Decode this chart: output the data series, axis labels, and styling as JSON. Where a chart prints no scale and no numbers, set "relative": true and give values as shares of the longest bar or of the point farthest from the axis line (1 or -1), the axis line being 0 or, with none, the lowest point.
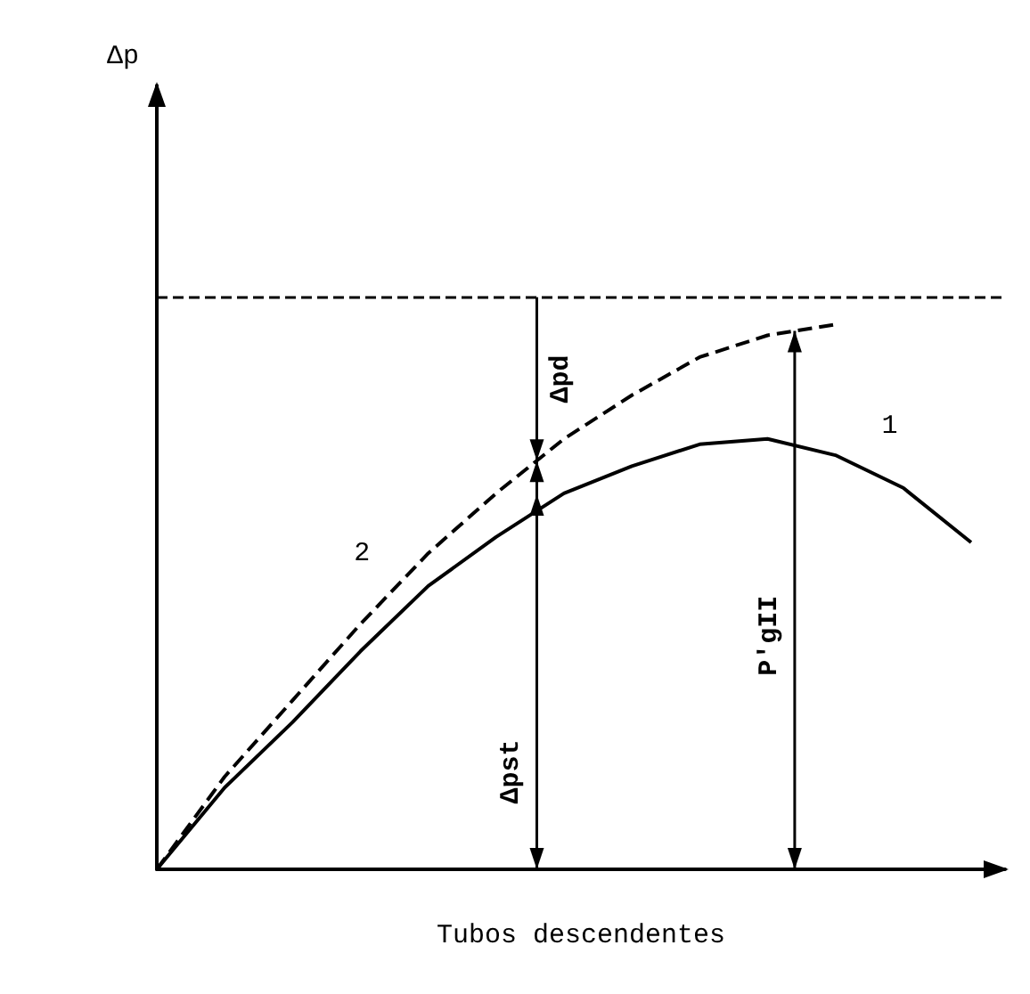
{
  "chart_data": {
    "type": "line",
    "relative": true,
    "xlabel": "Tubos descendentes",
    "categories": [
      null,
      null,
      null,
      null,
      null,
      null,
      null,
      null,
      null,
      null,
      null,
      null,
      null
    ],
    "series": [
      {
        "name": "1",
        "color": "#000000",
        "line_style": "solid",
        "values": [
          0,
          0.15,
          0.27,
          0.4,
          0.52,
          0.61,
          0.69,
          0.74,
          0.78,
          0.79,
          0.76,
          0.7,
          0.6
        ]
      },
      {
        "name": "2",
        "color": "#000000",
        "line_style": "dashed",
        "values": [
          0,
          0.17,
          0.31,
          0.45,
          0.58,
          0.69,
          0.79,
          0.87,
          0.94,
          0.98,
          1,
          null,
          null
        ]
      }
    ],
    "ref_lines": [
      {
        "axis": "y",
        "value": 1.05,
        "line_style": "dashed",
        "color": "#000000"
      }
    ],
    "annotations": [
      "Δp",
      "Δpd",
      "Δpst",
      "P'gII"
    ],
    "marker": "none",
    "grid": false,
    "legend": false
  }
}
